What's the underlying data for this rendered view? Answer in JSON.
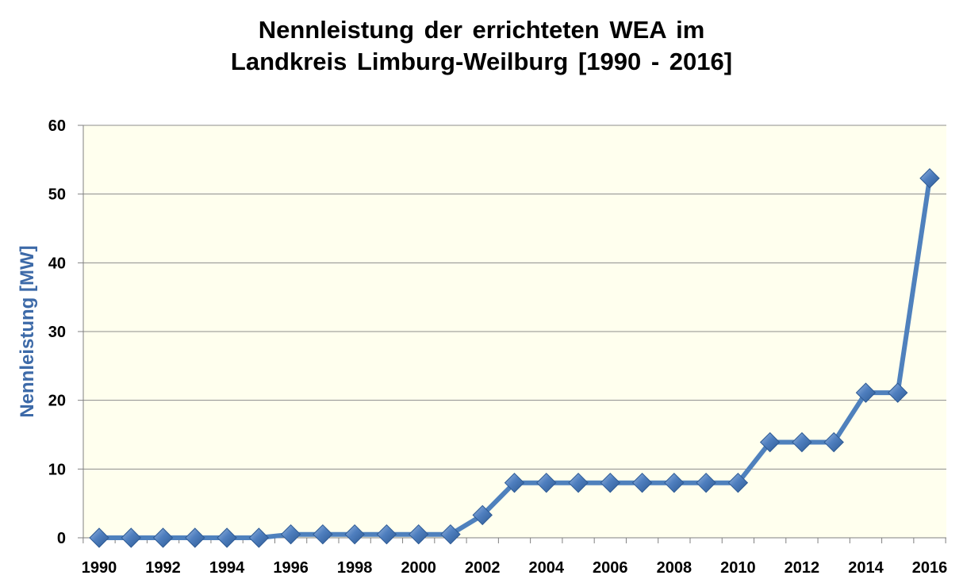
{
  "chart_data": {
    "type": "line",
    "title": [
      "Nennleistung der errichteten WEA im",
      "Landkreis Limburg-Weilburg [1990 - 2016]"
    ],
    "xlabel": "",
    "ylabel": "Nennleistung [MW]",
    "x": [
      1990,
      1991,
      1992,
      1993,
      1994,
      1995,
      1996,
      1997,
      1998,
      1999,
      2000,
      2001,
      2002,
      2003,
      2004,
      2005,
      2006,
      2007,
      2008,
      2009,
      2010,
      2011,
      2012,
      2013,
      2014,
      2015,
      2016
    ],
    "series": [
      {
        "values": [
          0,
          0,
          0,
          0,
          0,
          0,
          0.5,
          0.5,
          0.5,
          0.5,
          0.5,
          0.5,
          3.3,
          8,
          8,
          8,
          8,
          8,
          8,
          8,
          8,
          13.9,
          13.9,
          13.9,
          21.1,
          21.1,
          52.3
        ]
      }
    ],
    "xticks": [
      "1990",
      "1992",
      "1994",
      "1996",
      "1998",
      "2000",
      "2002",
      "2004",
      "2006",
      "2008",
      "2010",
      "2012",
      "2014",
      "2016"
    ],
    "yticks": [
      "0",
      "10",
      "20",
      "30",
      "40",
      "50",
      "60"
    ],
    "ylim": [
      0,
      60
    ],
    "grid": true,
    "colors": {
      "line": "#4f81bd",
      "marker": "#3f6fae",
      "plot_bg": "#ffffee",
      "gridline": "#8c8c8c",
      "ylabel": "#3d6aa8"
    }
  }
}
